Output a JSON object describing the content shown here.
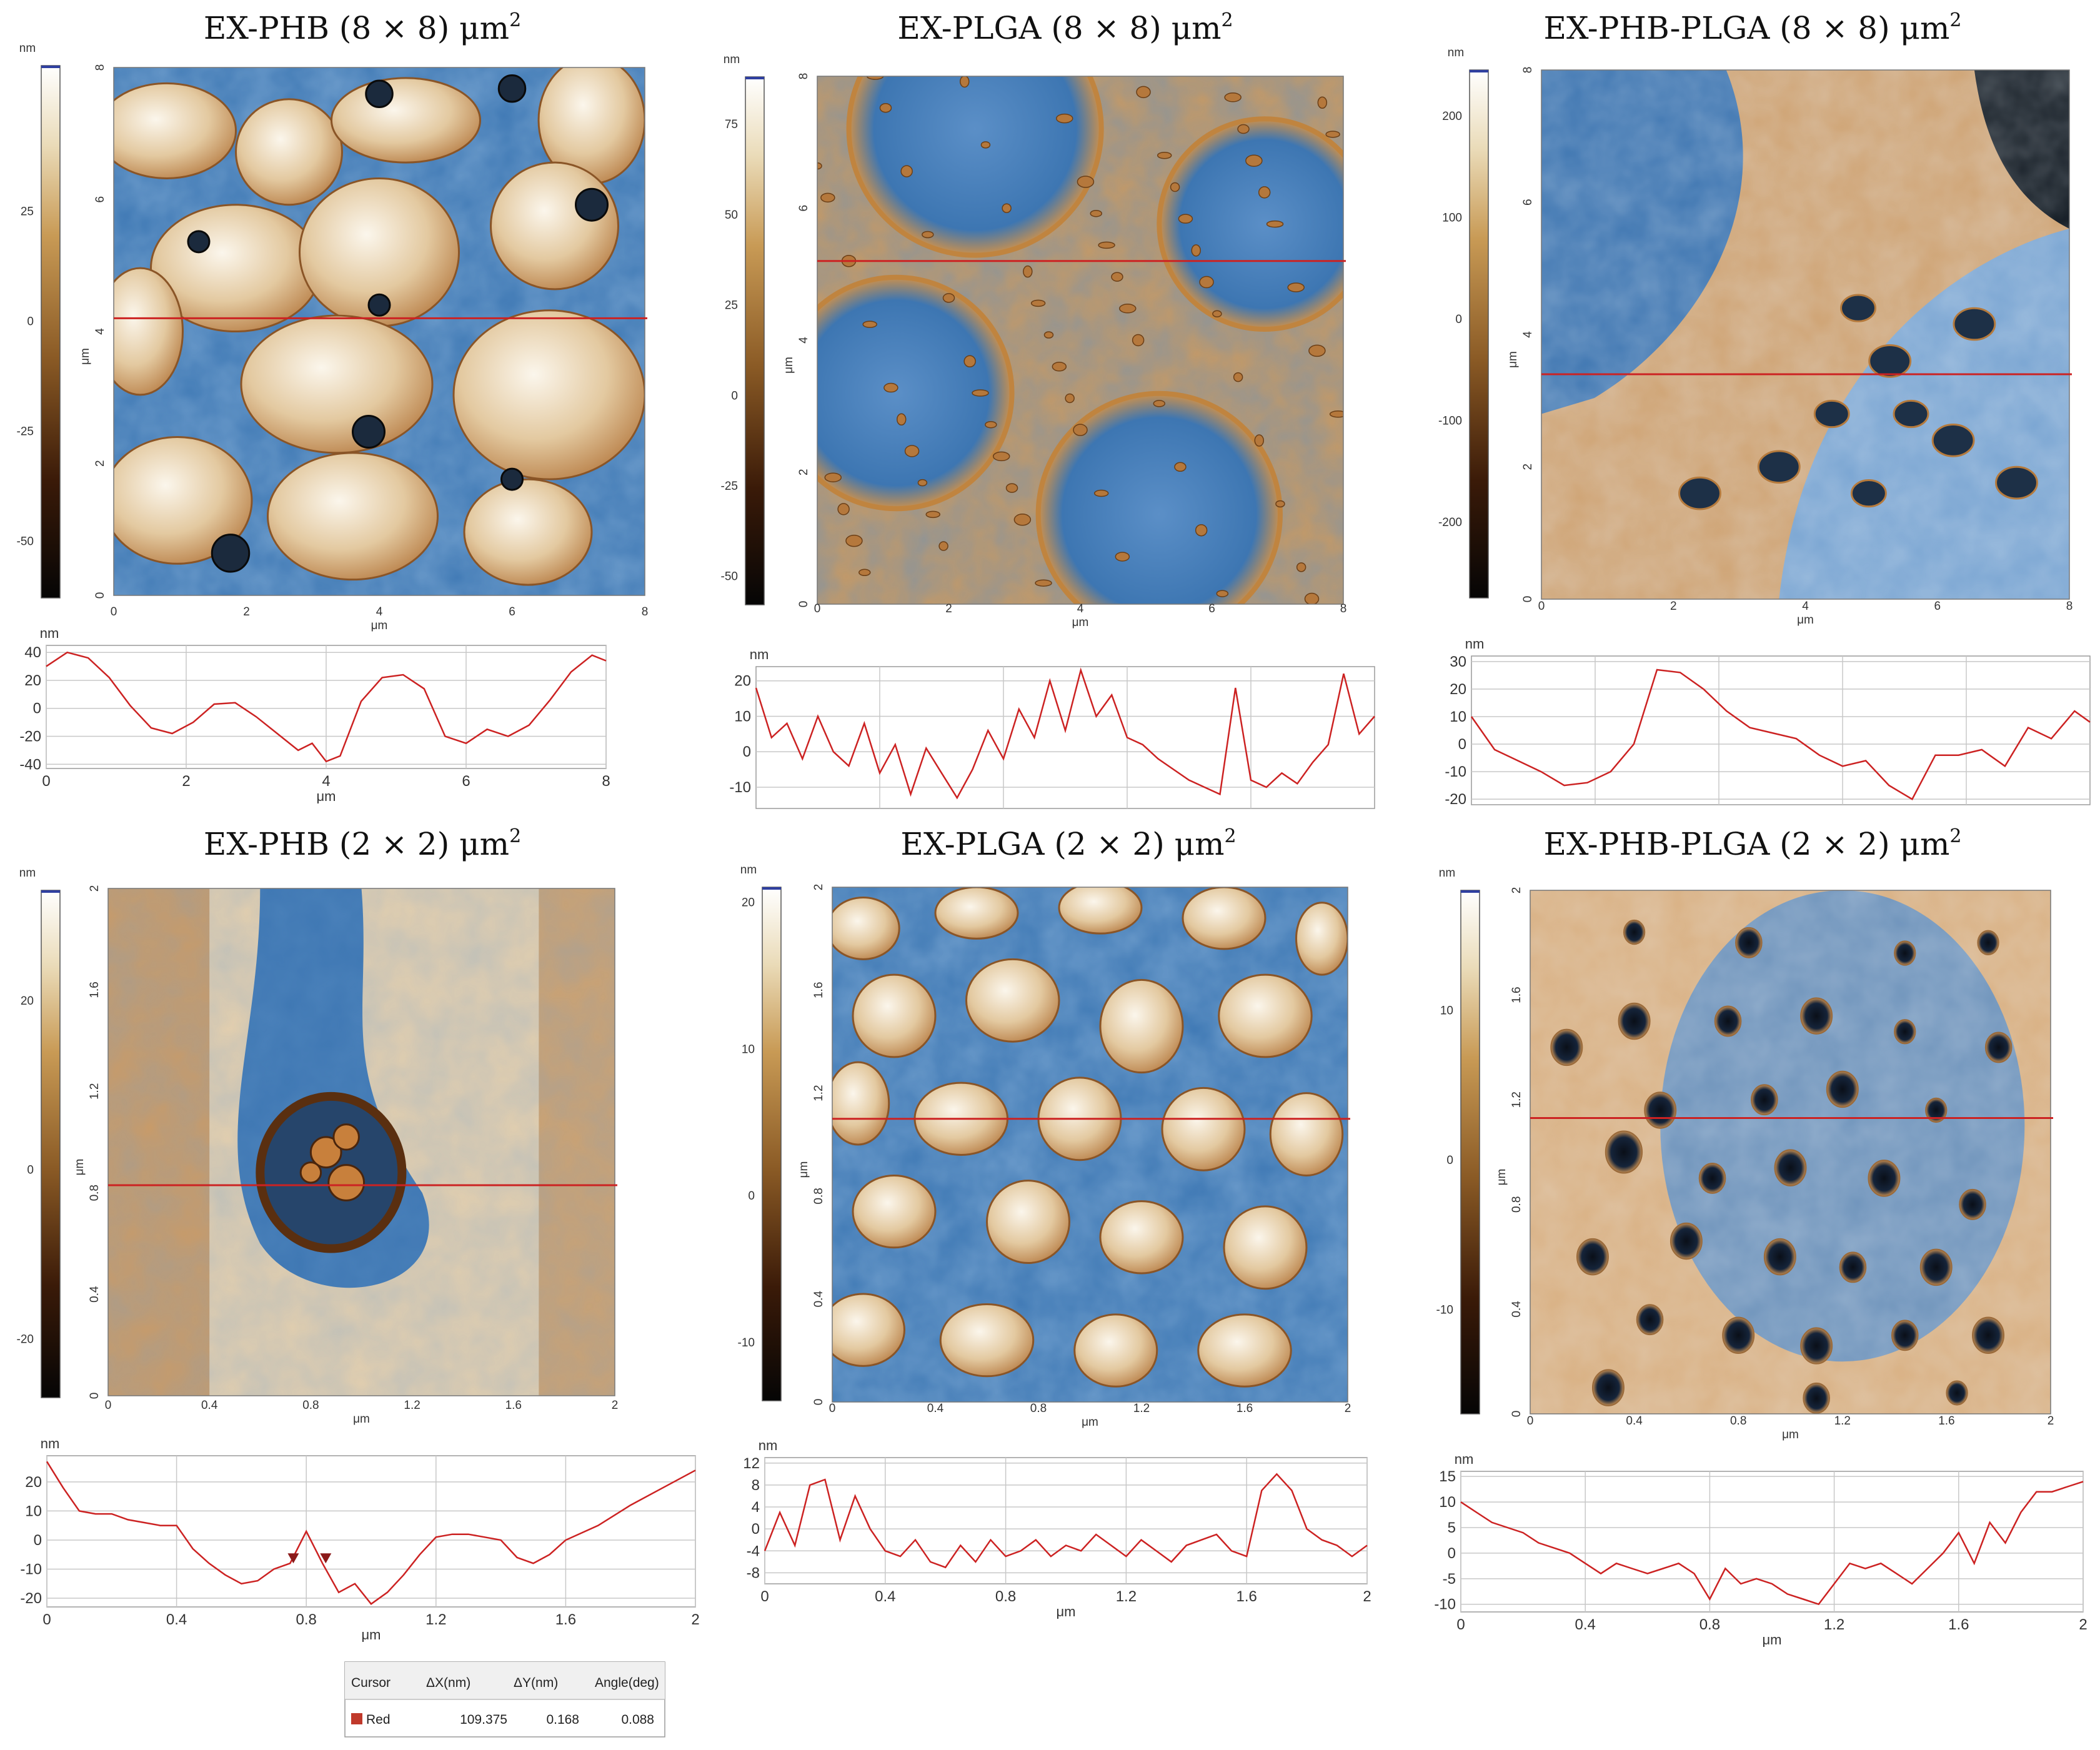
{
  "palette": {
    "brown": "#b9814a",
    "cream": "#f2ebdd",
    "blue": "#3d76b2",
    "dark": "#0d0d0d",
    "profile_line": "#cc2222",
    "grid": "#c8c8c8"
  },
  "panels": [
    {
      "id": "phb-8",
      "title": "EX-PHB (8 × 8) μm",
      "title_sup": "2",
      "color_scale": {
        "unit": "nm",
        "ticks": [
          "25",
          "0",
          "-25",
          "-50"
        ],
        "tick_values": [
          25,
          0,
          -25,
          -50
        ],
        "min": -63,
        "max": 58
      },
      "image": {
        "x_unit": "μm",
        "y_unit": "μm",
        "x_ticks": [
          "0",
          "2",
          "4",
          "6",
          "8"
        ],
        "y_ticks": [
          "0",
          "2",
          "4",
          "6",
          "8"
        ],
        "extent": [
          0,
          8
        ],
        "scan_line_y": 4.2
      },
      "chart_data": {
        "type": "line",
        "y_unit": "nm",
        "x_unit": "μm",
        "x_ticks": [
          "0",
          "2",
          "4",
          "6",
          "8"
        ],
        "x_tick_values": [
          0,
          2,
          4,
          6,
          8
        ],
        "y_ticks": [
          "40",
          "20",
          "0",
          "-20",
          "-40"
        ],
        "y_tick_values": [
          40,
          20,
          0,
          -20,
          -40
        ],
        "xlim": [
          0,
          8
        ],
        "ylim": [
          -43,
          45
        ],
        "grid": true,
        "x": [
          0,
          0.3,
          0.6,
          0.9,
          1.2,
          1.5,
          1.8,
          2.1,
          2.4,
          2.7,
          3.0,
          3.3,
          3.6,
          3.8,
          4.0,
          4.2,
          4.5,
          4.8,
          5.1,
          5.4,
          5.7,
          6.0,
          6.3,
          6.6,
          6.9,
          7.2,
          7.5,
          7.8,
          8.0
        ],
        "y": [
          30,
          40,
          36,
          22,
          2,
          -14,
          -18,
          -10,
          3,
          4,
          -6,
          -18,
          -30,
          -25,
          -38,
          -34,
          5,
          22,
          24,
          14,
          -20,
          -25,
          -15,
          -20,
          -12,
          6,
          26,
          38,
          34
        ]
      }
    },
    {
      "id": "plga-8",
      "title": "EX-PLGA (8 × 8) μm",
      "title_sup": "2",
      "color_scale": {
        "unit": "nm",
        "ticks": [
          "75",
          "50",
          "25",
          "0",
          "-25",
          "-50"
        ],
        "tick_values": [
          75,
          50,
          25,
          0,
          -25,
          -50
        ],
        "min": -58,
        "max": 88
      },
      "image": {
        "x_unit": "μm",
        "y_unit": "μm",
        "x_ticks": [
          "0",
          "2",
          "4",
          "6",
          "8"
        ],
        "y_ticks": [
          "0",
          "2",
          "4",
          "6",
          "8"
        ],
        "extent": [
          0,
          8
        ],
        "scan_line_y": 5.2
      },
      "chart_data": {
        "type": "line",
        "y_unit": "nm",
        "x_unit": "μm",
        "x_ticks": [],
        "x_tick_values": [],
        "y_ticks": [
          "20",
          "10",
          "0",
          "-10"
        ],
        "y_tick_values": [
          20,
          10,
          0,
          -10
        ],
        "xlim": [
          0,
          8
        ],
        "ylim": [
          -16,
          24
        ],
        "grid": true,
        "x": [
          0,
          0.2,
          0.4,
          0.6,
          0.8,
          1.0,
          1.2,
          1.4,
          1.6,
          1.8,
          2.0,
          2.2,
          2.4,
          2.6,
          2.8,
          3.0,
          3.2,
          3.4,
          3.6,
          3.8,
          4.0,
          4.2,
          4.4,
          4.6,
          4.8,
          5.0,
          5.2,
          5.4,
          5.6,
          5.8,
          6.0,
          6.2,
          6.4,
          6.6,
          6.8,
          7.0,
          7.2,
          7.4,
          7.6,
          7.8,
          8.0
        ],
        "y": [
          18,
          4,
          8,
          -2,
          10,
          0,
          -4,
          8,
          -6,
          2,
          -12,
          1,
          -6,
          -13,
          -5,
          6,
          -2,
          12,
          4,
          20,
          6,
          23,
          10,
          16,
          4,
          2,
          -2,
          -5,
          -8,
          -10,
          -12,
          18,
          -8,
          -10,
          -6,
          -9,
          -3,
          2,
          22,
          5,
          10
        ]
      }
    },
    {
      "id": "phbplga-8",
      "title": "EX-PHB-PLGA (8 × 8) μm",
      "title_sup": "2",
      "color_scale": {
        "unit": "nm",
        "ticks": [
          "200",
          "100",
          "0",
          "-100",
          "-200"
        ],
        "tick_values": [
          200,
          100,
          0,
          -100,
          -200
        ],
        "min": -275,
        "max": 245
      },
      "image": {
        "x_unit": "μm",
        "y_unit": "μm",
        "x_ticks": [
          "0",
          "2",
          "4",
          "6",
          "8"
        ],
        "y_ticks": [
          "0",
          "2",
          "4",
          "6",
          "8"
        ],
        "extent": [
          0,
          8
        ],
        "scan_line_y": 3.4
      },
      "chart_data": {
        "type": "line",
        "y_unit": "nm",
        "x_unit": "μm",
        "x_ticks": [],
        "x_tick_values": [],
        "y_ticks": [
          "30",
          "20",
          "10",
          "0",
          "-10",
          "-20"
        ],
        "y_tick_values": [
          30,
          20,
          10,
          0,
          -10,
          -20
        ],
        "xlim": [
          0,
          8
        ],
        "ylim": [
          -22,
          32
        ],
        "grid": true,
        "x": [
          0,
          0.3,
          0.6,
          0.9,
          1.2,
          1.5,
          1.8,
          2.1,
          2.4,
          2.7,
          3.0,
          3.3,
          3.6,
          3.9,
          4.2,
          4.5,
          4.8,
          5.1,
          5.4,
          5.7,
          6.0,
          6.3,
          6.6,
          6.9,
          7.2,
          7.5,
          7.8,
          8.0
        ],
        "y": [
          10,
          -2,
          -6,
          -10,
          -15,
          -14,
          -10,
          0,
          27,
          26,
          20,
          12,
          6,
          4,
          2,
          -4,
          -8,
          -6,
          -15,
          -20,
          -4,
          -4,
          -2,
          -8,
          6,
          2,
          12,
          8
        ]
      }
    },
    {
      "id": "phb-2",
      "title": "EX-PHB (2 × 2) μm",
      "title_sup": "2",
      "color_scale": {
        "unit": "nm",
        "ticks": [
          "20",
          "0",
          "-20"
        ],
        "tick_values": [
          20,
          0,
          -20
        ],
        "min": -27,
        "max": 33
      },
      "image": {
        "x_unit": "μm",
        "y_unit": "μm",
        "x_ticks": [
          "0",
          "0.4",
          "0.8",
          "1.2",
          "1.6",
          "2"
        ],
        "y_ticks": [
          "0",
          "0.4",
          "0.8",
          "1.2",
          "1.6",
          "2"
        ],
        "extent": [
          0,
          2
        ],
        "scan_line_y": 0.83
      },
      "chart_data": {
        "type": "line",
        "y_unit": "nm",
        "x_unit": "μm",
        "x_ticks": [
          "0",
          "0.4",
          "0.8",
          "1.2",
          "1.6",
          "2"
        ],
        "x_tick_values": [
          0,
          0.4,
          0.8,
          1.2,
          1.6,
          2
        ],
        "y_ticks": [
          "20",
          "10",
          "0",
          "-10",
          "-20"
        ],
        "y_tick_values": [
          20,
          10,
          0,
          -10,
          -20
        ],
        "xlim": [
          0,
          2
        ],
        "ylim": [
          -23,
          29
        ],
        "grid": true,
        "x": [
          0,
          0.05,
          0.1,
          0.15,
          0.2,
          0.25,
          0.3,
          0.35,
          0.4,
          0.45,
          0.5,
          0.55,
          0.6,
          0.65,
          0.7,
          0.75,
          0.8,
          0.85,
          0.9,
          0.95,
          1.0,
          1.05,
          1.1,
          1.15,
          1.2,
          1.25,
          1.3,
          1.35,
          1.4,
          1.45,
          1.5,
          1.55,
          1.6,
          1.7,
          1.8,
          1.9,
          2.0
        ],
        "y": [
          27,
          18,
          10,
          9,
          9,
          7,
          6,
          5,
          5,
          -3,
          -8,
          -12,
          -15,
          -14,
          -10,
          -8,
          3,
          -8,
          -18,
          -15,
          -22,
          -18,
          -12,
          -5,
          1,
          2,
          2,
          1,
          0,
          -6,
          -8,
          -5,
          0,
          5,
          12,
          18,
          24
        ],
        "markers_x": [
          0.76,
          0.86
        ]
      },
      "cursor_table": {
        "headers": [
          "Cursor",
          "ΔX(nm)",
          "ΔY(nm)",
          "Angle(deg)"
        ],
        "row": {
          "name": "Red",
          "dx": "109.375",
          "dy": "0.168",
          "angle": "0.088"
        }
      }
    },
    {
      "id": "plga-2",
      "title": "EX-PLGA (2 × 2) μm",
      "title_sup": "2",
      "color_scale": {
        "unit": "nm",
        "ticks": [
          "20",
          "10",
          "0",
          "-10"
        ],
        "tick_values": [
          20,
          10,
          0,
          -10
        ],
        "min": -14,
        "max": 21
      },
      "image": {
        "x_unit": "μm",
        "y_unit": "μm",
        "x_ticks": [
          "0",
          "0.4",
          "0.8",
          "1.2",
          "1.6",
          "2"
        ],
        "y_ticks": [
          "0",
          "0.4",
          "0.8",
          "1.2",
          "1.6",
          "2"
        ],
        "extent": [
          0,
          2
        ],
        "scan_line_y": 1.1
      },
      "chart_data": {
        "type": "line",
        "y_unit": "nm",
        "x_unit": "μm",
        "x_ticks": [
          "0",
          "0.4",
          "0.8",
          "1.2",
          "1.6",
          "2"
        ],
        "x_tick_values": [
          0,
          0.4,
          0.8,
          1.2,
          1.6,
          2
        ],
        "y_ticks": [
          "12",
          "8",
          "4",
          "0",
          "-4",
          "-8"
        ],
        "y_tick_values": [
          12,
          8,
          4,
          0,
          -4,
          -8
        ],
        "xlim": [
          0,
          2
        ],
        "ylim": [
          -10,
          13
        ],
        "grid": true,
        "x": [
          0,
          0.05,
          0.1,
          0.15,
          0.2,
          0.25,
          0.3,
          0.35,
          0.4,
          0.45,
          0.5,
          0.55,
          0.6,
          0.65,
          0.7,
          0.75,
          0.8,
          0.85,
          0.9,
          0.95,
          1.0,
          1.05,
          1.1,
          1.15,
          1.2,
          1.25,
          1.3,
          1.35,
          1.4,
          1.45,
          1.5,
          1.55,
          1.6,
          1.65,
          1.7,
          1.75,
          1.8,
          1.85,
          1.9,
          1.95,
          2.0
        ],
        "y": [
          -4,
          3,
          -3,
          8,
          9,
          -2,
          6,
          0,
          -4,
          -5,
          -2,
          -6,
          -7,
          -3,
          -6,
          -2,
          -5,
          -4,
          -2,
          -5,
          -3,
          -4,
          -1,
          -3,
          -5,
          -2,
          -4,
          -6,
          -3,
          -2,
          -1,
          -4,
          -5,
          7,
          10,
          7,
          0,
          -2,
          -3,
          -5,
          -3
        ]
      }
    },
    {
      "id": "phbplga-2",
      "title": "EX-PHB-PLGA (2 × 2) μm",
      "title_sup": "2",
      "color_scale": {
        "unit": "nm",
        "ticks": [
          "10",
          "0",
          "-10"
        ],
        "tick_values": [
          10,
          0,
          -10
        ],
        "min": -17,
        "max": 18
      },
      "image": {
        "x_unit": "μm",
        "y_unit": "μm",
        "x_ticks": [
          "0",
          "0.4",
          "0.8",
          "1.2",
          "1.6",
          "2"
        ],
        "y_ticks": [
          "0",
          "0.4",
          "0.8",
          "1.2",
          "1.6",
          "2"
        ],
        "extent": [
          0,
          2
        ],
        "scan_line_y": 1.13
      },
      "chart_data": {
        "type": "line",
        "y_unit": "nm",
        "x_unit": "μm",
        "x_ticks": [
          "0",
          "0.4",
          "0.8",
          "1.2",
          "1.6",
          "2"
        ],
        "x_tick_values": [
          0,
          0.4,
          0.8,
          1.2,
          1.6,
          2
        ],
        "y_ticks": [
          "15",
          "10",
          "5",
          "0",
          "-5",
          "-10"
        ],
        "y_tick_values": [
          15,
          10,
          5,
          0,
          -5,
          -10
        ],
        "xlim": [
          0,
          2
        ],
        "ylim": [
          -11.5,
          16
        ],
        "grid": true,
        "x": [
          0,
          0.05,
          0.1,
          0.15,
          0.2,
          0.25,
          0.3,
          0.35,
          0.4,
          0.45,
          0.5,
          0.55,
          0.6,
          0.65,
          0.7,
          0.75,
          0.8,
          0.85,
          0.9,
          0.95,
          1.0,
          1.05,
          1.1,
          1.15,
          1.2,
          1.25,
          1.3,
          1.35,
          1.4,
          1.45,
          1.5,
          1.55,
          1.6,
          1.65,
          1.7,
          1.75,
          1.8,
          1.85,
          1.9,
          1.95,
          2.0
        ],
        "y": [
          10,
          8,
          6,
          5,
          4,
          2,
          1,
          0,
          -2,
          -4,
          -2,
          -3,
          -4,
          -3,
          -2,
          -4,
          -9,
          -3,
          -6,
          -5,
          -6,
          -8,
          -9,
          -10,
          -6,
          -2,
          -3,
          -2,
          -4,
          -6,
          -3,
          0,
          4,
          -2,
          6,
          2,
          8,
          12,
          12,
          13,
          14
        ]
      }
    }
  ]
}
